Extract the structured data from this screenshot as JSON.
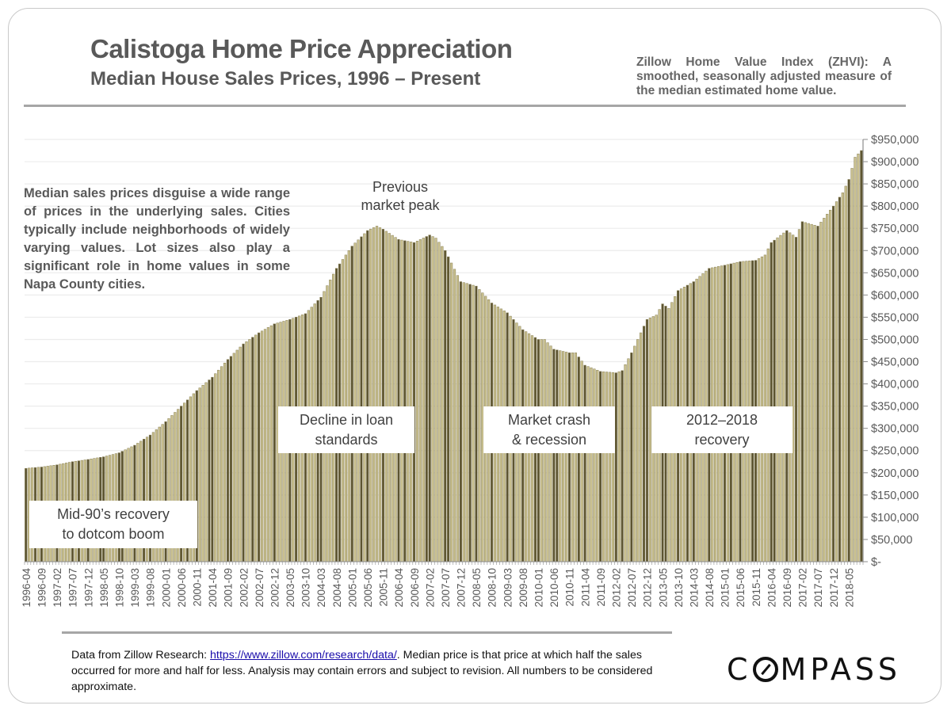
{
  "header": {
    "title": "Calistoga Home Price Appreciation",
    "subtitle": "Median House Sales Prices, 1996 – Present",
    "zhvi_note": "Zillow Home Value Index (ZHVI): A smoothed, seasonally adjusted measure of the median estimated home value."
  },
  "side_note": "Median sales prices disguise a wide range of prices in the underlying sales. Cities typically include neighborhoods of widely varying values. Lot sizes also play a significant role in home values in some Napa County cities.",
  "annotations": {
    "peak": [
      "Previous",
      "market peak"
    ],
    "dotcom": [
      "Mid-90’s recovery",
      "to dotcom boom"
    ],
    "loan": [
      "Decline in loan",
      "standards"
    ],
    "crash": [
      "Market crash",
      "& recession"
    ],
    "recovery": [
      "2012–2018",
      "recovery"
    ]
  },
  "footer": {
    "prefix": "Data from Zillow Research: ",
    "link_text": "https://www.zillow.com/research/data/",
    "suffix": ". Median price is that price at which half the sales occurred for more and half for less. Analysis may contain errors and subject to revision. All numbers to be considered approximate."
  },
  "logo": {
    "pre": "C",
    "post": "MPASS"
  },
  "colors": {
    "bar_light": "#c9c08f",
    "bar_dark": "#5c5431",
    "bar_edge": "#8a8155",
    "grid": "#ececec",
    "axis": "#8c8c8c",
    "text": "#595959"
  },
  "chart_data": {
    "type": "bar",
    "title": "Calistoga Home Price Appreciation",
    "subtitle": "Median House Sales Prices, 1996 – Present",
    "xlabel": "",
    "ylabel": "",
    "start_month": "1996-04",
    "end_month": "2018-09",
    "ylim": [
      0,
      950000
    ],
    "y_ticks": [
      0,
      50000,
      100000,
      150000,
      200000,
      250000,
      300000,
      350000,
      400000,
      450000,
      500000,
      550000,
      600000,
      650000,
      700000,
      750000,
      800000,
      850000,
      900000,
      950000
    ],
    "y_tick_labels": [
      "$-",
      "$50,000",
      "$100,000",
      "$150,000",
      "$200,000",
      "$250,000",
      "$300,000",
      "$350,000",
      "$400,000",
      "$450,000",
      "$500,000",
      "$550,000",
      "$600,000",
      "$650,000",
      "$700,000",
      "$750,000",
      "$800,000",
      "$850,000",
      "$900,000",
      "$950,000"
    ],
    "x_tick_labels": [
      "1996-04",
      "1996-09",
      "1997-02",
      "1997-07",
      "1997-12",
      "1998-05",
      "1998-10",
      "1999-03",
      "1999-08",
      "2000-01",
      "2000-06",
      "2000-11",
      "2001-04",
      "2001-09",
      "2002-02",
      "2002-07",
      "2002-12",
      "2003-05",
      "2003-10",
      "2004-03",
      "2004-08",
      "2005-01",
      "2005-06",
      "2005-11",
      "2006-04",
      "2006-09",
      "2007-02",
      "2007-07",
      "2007-12",
      "2008-05",
      "2008-10",
      "2009-03",
      "2009-08",
      "2010-01",
      "2010-06",
      "2010-11",
      "2011-04",
      "2011-09",
      "2012-02",
      "2012-07",
      "2012-12",
      "2013-05",
      "2013-10",
      "2014-03",
      "2014-08",
      "2015-01",
      "2015-06",
      "2015-11",
      "2016-04",
      "2016-09",
      "2017-02",
      "2017-07",
      "2017-12",
      "2018-05"
    ],
    "grid": true,
    "legend": "none",
    "series": [
      {
        "name": "Zillow Home Value Index (ZHVI)",
        "control_points": [
          [
            "1996-04",
            210000
          ],
          [
            "1996-09",
            213000
          ],
          [
            "1997-02",
            218000
          ],
          [
            "1997-07",
            225000
          ],
          [
            "1997-12",
            230000
          ],
          [
            "1998-05",
            236000
          ],
          [
            "1998-10",
            245000
          ],
          [
            "1999-03",
            262000
          ],
          [
            "1999-08",
            285000
          ],
          [
            "2000-01",
            315000
          ],
          [
            "2000-06",
            350000
          ],
          [
            "2000-11",
            385000
          ],
          [
            "2001-04",
            415000
          ],
          [
            "2001-09",
            455000
          ],
          [
            "2002-02",
            490000
          ],
          [
            "2002-07",
            515000
          ],
          [
            "2002-12",
            535000
          ],
          [
            "2003-05",
            545000
          ],
          [
            "2003-10",
            558000
          ],
          [
            "2004-03",
            595000
          ],
          [
            "2004-08",
            660000
          ],
          [
            "2005-01",
            710000
          ],
          [
            "2005-06",
            745000
          ],
          [
            "2005-09",
            755000
          ],
          [
            "2005-11",
            748000
          ],
          [
            "2006-04",
            725000
          ],
          [
            "2006-09",
            718000
          ],
          [
            "2007-02",
            735000
          ],
          [
            "2007-04",
            728000
          ],
          [
            "2007-07",
            700000
          ],
          [
            "2007-12",
            630000
          ],
          [
            "2008-05",
            620000
          ],
          [
            "2008-10",
            582000
          ],
          [
            "2009-03",
            560000
          ],
          [
            "2009-08",
            522000
          ],
          [
            "2010-01",
            500000
          ],
          [
            "2010-03",
            500000
          ],
          [
            "2010-06",
            478000
          ],
          [
            "2010-11",
            470000
          ],
          [
            "2011-01",
            470000
          ],
          [
            "2011-04",
            442000
          ],
          [
            "2011-09",
            428000
          ],
          [
            "2012-02",
            425000
          ],
          [
            "2012-04",
            430000
          ],
          [
            "2012-07",
            470000
          ],
          [
            "2012-12",
            545000
          ],
          [
            "2013-03",
            555000
          ],
          [
            "2013-05",
            580000
          ],
          [
            "2013-07",
            570000
          ],
          [
            "2013-10",
            610000
          ],
          [
            "2014-03",
            630000
          ],
          [
            "2014-08",
            660000
          ],
          [
            "2015-01",
            667000
          ],
          [
            "2015-06",
            675000
          ],
          [
            "2015-11",
            678000
          ],
          [
            "2016-02",
            690000
          ],
          [
            "2016-04",
            718000
          ],
          [
            "2016-09",
            745000
          ],
          [
            "2016-12",
            730000
          ],
          [
            "2017-02",
            765000
          ],
          [
            "2017-07",
            755000
          ],
          [
            "2017-12",
            800000
          ],
          [
            "2018-03",
            830000
          ],
          [
            "2018-05",
            860000
          ],
          [
            "2018-07",
            910000
          ],
          [
            "2018-09",
            925000
          ]
        ]
      }
    ]
  }
}
